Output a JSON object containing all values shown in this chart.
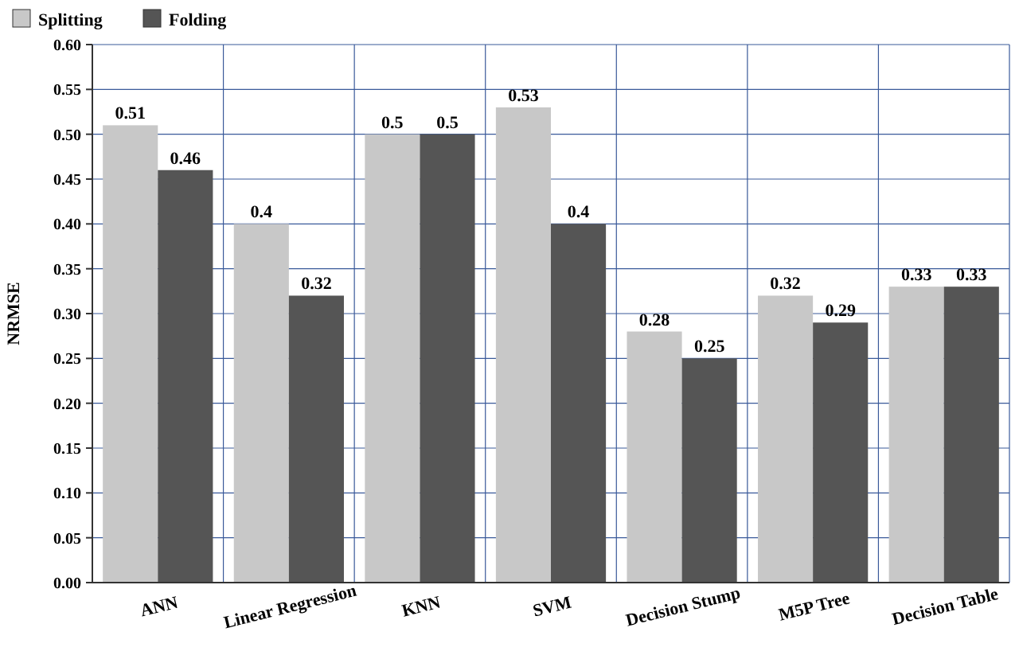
{
  "chart_data": {
    "type": "bar",
    "ylabel": "NRMSE",
    "categories": [
      "ANN",
      "Linear Regression",
      "KNN",
      "SVM",
      "Decision Stump",
      "M5P Tree",
      "Decision Table"
    ],
    "series": [
      {
        "name": "Splitting",
        "color": "#c8c8c8",
        "values": [
          0.51,
          0.4,
          0.5,
          0.53,
          0.28,
          0.32,
          0.33
        ]
      },
      {
        "name": "Folding",
        "color": "#555555",
        "values": [
          0.46,
          0.32,
          0.5,
          0.4,
          0.25,
          0.29,
          0.33
        ]
      }
    ],
    "ylim": [
      0,
      0.6
    ],
    "yticks": [
      {
        "value": 0,
        "label": "0.00"
      },
      {
        "value": 0.05,
        "label": "0.05"
      },
      {
        "value": 0.1,
        "label": "0.10"
      },
      {
        "value": 0.15,
        "label": "0.15"
      },
      {
        "value": 0.2,
        "label": "0.20"
      },
      {
        "value": 0.25,
        "label": "0.25"
      },
      {
        "value": 0.3,
        "label": "0.30"
      },
      {
        "value": 0.35,
        "label": "0.35"
      },
      {
        "value": 0.4,
        "label": "0.40"
      },
      {
        "value": 0.45,
        "label": "0.45"
      },
      {
        "value": 0.5,
        "label": "0.50"
      },
      {
        "value": 0.55,
        "label": "0.55"
      },
      {
        "value": 0.6,
        "label": "0.60"
      }
    ],
    "grid": true,
    "legend": "top left",
    "data_labels": true
  }
}
